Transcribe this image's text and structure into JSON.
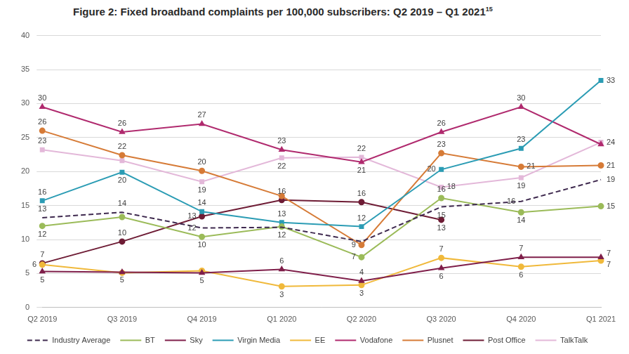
{
  "chart_data": {
    "type": "line",
    "title": "Figure 2: Fixed broadband complaints per 100,000 subscribers: Q2 2019 – Q1 2021",
    "title_footnote": "15",
    "categories": [
      "Q2 2019",
      "Q3 2019",
      "Q4 2019",
      "Q1 2020",
      "Q2 2020",
      "Q3 2020",
      "Q4 2020",
      "Q1 2021"
    ],
    "ylim": [
      0,
      40
    ],
    "yticks": [
      0,
      5,
      10,
      15,
      20,
      25,
      30,
      35,
      40
    ],
    "grid": true,
    "legend": "bottom",
    "data_labels": true,
    "series": [
      {
        "name": "Industry Average",
        "color": "#3f2a4f",
        "line_style": "dashed",
        "marker": "none",
        "values": [
          13.2,
          14.0,
          11.7,
          11.8,
          9.7,
          14.8,
          15.6,
          18.8
        ],
        "value_labels": [
          "13",
          "14",
          "12",
          null,
          null,
          "15",
          "16",
          "19"
        ]
      },
      {
        "name": "BT",
        "color": "#9bbb59",
        "line_style": "solid",
        "marker": "circle",
        "values": [
          12.0,
          13.3,
          10.4,
          11.9,
          7.4,
          16.1,
          14.0,
          14.9
        ],
        "value_labels": [
          "12",
          null,
          "10",
          "12",
          "7",
          "16",
          "14",
          "15"
        ]
      },
      {
        "name": "Sky",
        "color": "#7f1f4a",
        "line_style": "solid",
        "marker": "triangle",
        "values": [
          5.3,
          5.2,
          5.1,
          5.6,
          3.9,
          5.8,
          7.4,
          7.4
        ],
        "value_labels": [
          "5",
          "5",
          "5",
          "6",
          "4",
          "6",
          "7",
          "7"
        ]
      },
      {
        "name": "Virgin Media",
        "color": "#2b9cb4",
        "line_style": "solid",
        "marker": "square",
        "values": [
          15.7,
          19.9,
          14.1,
          12.5,
          11.9,
          20.3,
          23.4,
          33.4
        ],
        "value_labels": [
          "16",
          "20",
          "14",
          "13",
          "12",
          "20",
          "23",
          "33"
        ]
      },
      {
        "name": "EE",
        "color": "#f0b93b",
        "line_style": "solid",
        "marker": "circle",
        "values": [
          6.3,
          5.1,
          5.4,
          3.1,
          3.3,
          7.3,
          6.0,
          6.9
        ],
        "value_labels": [
          "6",
          null,
          null,
          "3",
          "3",
          "7",
          "6",
          "7"
        ]
      },
      {
        "name": "Vodafone",
        "color": "#b02a6e",
        "line_style": "solid",
        "marker": "triangle",
        "values": [
          29.5,
          25.8,
          27.0,
          23.2,
          21.4,
          25.8,
          29.5,
          24.0
        ],
        "value_labels": [
          "30",
          "26",
          "27",
          "23",
          "21",
          "26",
          "30",
          null
        ]
      },
      {
        "name": "Plusnet",
        "color": "#d67b37",
        "line_style": "solid",
        "marker": "circle",
        "values": [
          26.0,
          22.4,
          20.1,
          16.4,
          9.2,
          22.7,
          20.7,
          20.9
        ],
        "value_labels": [
          "26",
          "22",
          "20",
          null,
          "9",
          "23",
          "21",
          "21"
        ]
      },
      {
        "name": "Post Office",
        "color": "#6e1c35",
        "line_style": "solid",
        "marker": "circle",
        "values": [
          6.5,
          9.7,
          13.4,
          15.8,
          15.5,
          12.9,
          null,
          null
        ],
        "value_labels": [
          "7",
          "10",
          "13",
          "16",
          "16",
          "13",
          null,
          null
        ]
      },
      {
        "name": "TalkTalk",
        "color": "#e3b8d9",
        "line_style": "solid",
        "marker": "square",
        "values": [
          23.2,
          21.6,
          18.5,
          22.0,
          22.1,
          17.7,
          19.1,
          24.3
        ],
        "value_labels": [
          "23",
          null,
          "19",
          "22",
          "22",
          "18",
          "19",
          "24"
        ]
      }
    ]
  }
}
